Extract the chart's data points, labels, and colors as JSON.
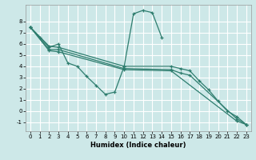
{
  "xlabel": "Humidex (Indice chaleur)",
  "background_color": "#cde8e8",
  "grid_color": "#ffffff",
  "line_color": "#2e7d6e",
  "xlim": [
    -0.5,
    23.5
  ],
  "ylim": [
    -1.8,
    9.5
  ],
  "xticks": [
    0,
    1,
    2,
    3,
    4,
    5,
    6,
    7,
    8,
    9,
    10,
    11,
    12,
    13,
    14,
    15,
    16,
    17,
    18,
    19,
    20,
    21,
    22,
    23
  ],
  "yticks": [
    -1,
    0,
    1,
    2,
    3,
    4,
    5,
    6,
    7,
    8
  ],
  "series": [
    {
      "x": [
        0,
        1,
        2,
        3,
        4,
        5,
        6,
        7,
        8,
        9,
        10,
        11,
        12,
        13,
        14
      ],
      "y": [
        7.5,
        6.6,
        5.7,
        6.0,
        4.3,
        4.0,
        3.1,
        2.3,
        1.5,
        1.7,
        4.0,
        8.7,
        9.0,
        8.8,
        6.6
      ]
    },
    {
      "x": [
        0,
        2,
        3,
        10,
        15,
        16,
        17,
        18,
        19,
        20,
        21,
        22,
        23
      ],
      "y": [
        7.5,
        5.8,
        5.7,
        4.0,
        4.0,
        3.8,
        3.6,
        2.7,
        1.9,
        0.9,
        0.0,
        -0.5,
        -1.2
      ]
    },
    {
      "x": [
        0,
        2,
        3,
        10,
        15,
        16,
        17,
        22,
        23
      ],
      "y": [
        7.5,
        5.5,
        5.5,
        3.8,
        3.7,
        3.4,
        3.2,
        -0.7,
        -1.2
      ]
    },
    {
      "x": [
        0,
        2,
        3,
        10,
        15,
        22,
        23
      ],
      "y": [
        7.5,
        5.4,
        5.3,
        3.7,
        3.6,
        -0.9,
        -1.2
      ]
    }
  ]
}
